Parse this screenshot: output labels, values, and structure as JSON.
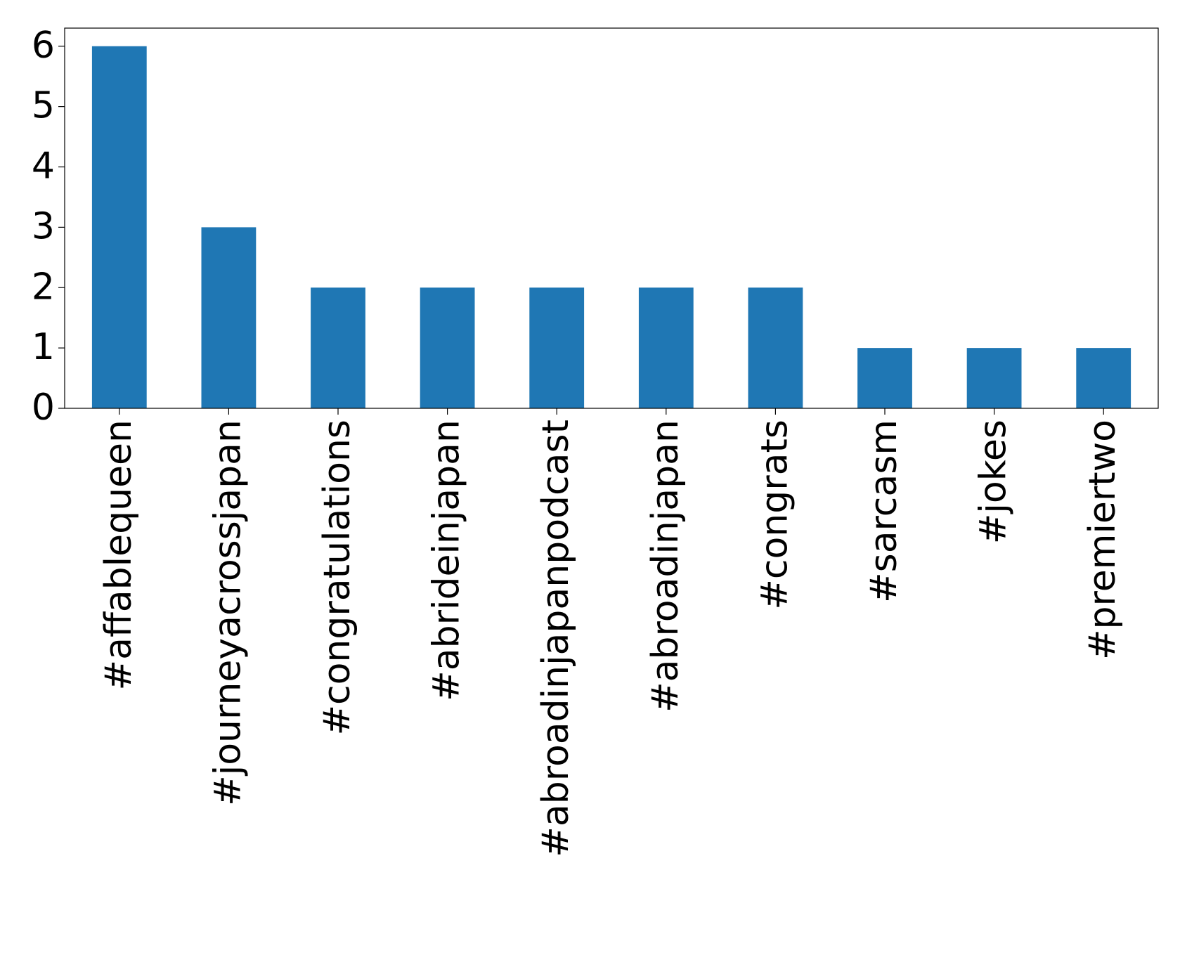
{
  "chart_data": {
    "type": "bar",
    "categories": [
      "#affablequeen",
      "#journeyacrossjapan",
      "#congratulations",
      "#abrideinjapan",
      "#abroadinjapanpodcast",
      "#abroadinjapan",
      "#congrats",
      "#sarcasm",
      "#jokes",
      "#premiertwo"
    ],
    "values": [
      6,
      3,
      2,
      2,
      2,
      2,
      2,
      1,
      1,
      1
    ],
    "color": "#1f77b4",
    "ylim": [
      0,
      6.3
    ],
    "yticks": [
      0,
      1,
      2,
      3,
      4,
      5,
      6
    ],
    "grid": false
  }
}
